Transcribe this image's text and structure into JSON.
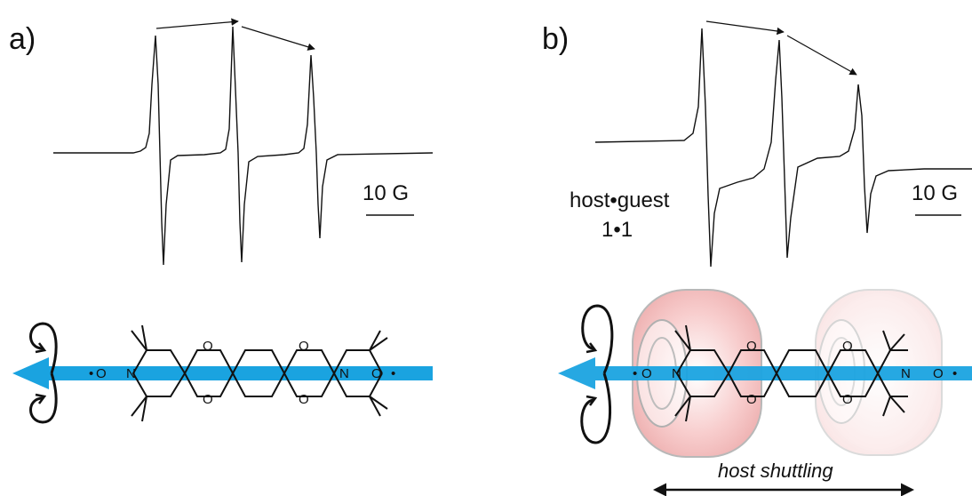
{
  "panel_a": {
    "label": "a)",
    "scale_label": "10 G"
  },
  "panel_b": {
    "label": "b)",
    "scale_label": "10 G",
    "complex_line1": "host•guest",
    "complex_line2": "1•1",
    "shuttling_label": "host shuttling"
  },
  "molecule": {
    "atom_o": "O",
    "atom_n": "N",
    "radical_left": "•",
    "radical_right": "•"
  },
  "colors": {
    "axis_arrow": "#1aa3e0",
    "ring_fill": "#f3b6b6",
    "ring_edge": "#b8b8b8",
    "spectrum": "#111111"
  },
  "icons": {
    "rotation": "circular-rotation-arrow-icon",
    "axis": "double-headed-axis-arrow-icon"
  }
}
